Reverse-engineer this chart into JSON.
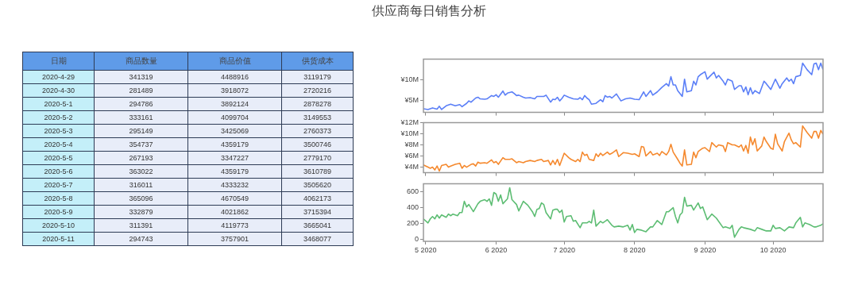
{
  "chart_data": [
    {
      "type": "other",
      "data_labels": true,
      "xlabel": "日期",
      "categories": [
        "2020-4-29",
        "2020-4-30",
        "2020-5-1",
        "2020-5-2",
        "2020-5-3",
        "2020-5-4",
        "2020-5-5",
        "2020-5-6",
        "2020-5-7",
        "2020-5-8",
        "2020-5-9",
        "2020-5-10",
        "2020-5-11"
      ],
      "series": [
        {
          "name": "商品数量",
          "values": [
            341319,
            281489,
            294786,
            333161,
            295149,
            354737,
            267193,
            363022,
            316011,
            365096,
            332879,
            311391,
            294743
          ]
        },
        {
          "name": "商品价值",
          "values": [
            4488916,
            3918072,
            3892124,
            4099704,
            3425069,
            4359179,
            3347227,
            4359179,
            4333232,
            4670549,
            4021862,
            4119773,
            3757901
          ]
        },
        {
          "name": "供货成本",
          "values": [
            3119179,
            2720216,
            2878278,
            3149553,
            2760373,
            3500746,
            2779170,
            3610789,
            3505620,
            4062173,
            3715394,
            3665041,
            3468077
          ]
        }
      ]
    },
    {
      "type": "line",
      "title": "供应商每日销售分析",
      "marker": "none",
      "tick_labels": "y",
      "xlim": [
        "2020-04-30",
        "2020-10-23"
      ],
      "xticks": [
        {
          "value": "2020-05-01",
          "label": null
        },
        {
          "value": "2020-06-01",
          "label": null
        },
        {
          "value": "2020-07-01",
          "label": null
        },
        {
          "value": "2020-08-01",
          "label": null
        },
        {
          "value": "2020-09-01",
          "label": null
        },
        {
          "value": "2020-10-01",
          "label": null
        }
      ],
      "ylim": [
        2,
        15
      ],
      "yticks": [
        {
          "value": 5,
          "label": "¥5M"
        },
        {
          "value": 10,
          "label": "¥10M"
        }
      ],
      "series": [
        {
          "color": "#5b7ff7",
          "x": [
            "2020-04-30",
            "2020-05-02",
            "2020-05-04",
            "2020-05-06",
            "2020-05-07",
            "2020-05-08",
            "2020-05-10",
            "2020-05-12",
            "2020-05-14",
            "2020-05-16",
            "2020-05-17",
            "2020-05-19",
            "2020-05-20",
            "2020-05-21",
            "2020-05-23",
            "2020-05-24",
            "2020-05-25",
            "2020-05-27",
            "2020-05-28",
            "2020-05-30",
            "2020-05-31",
            "2020-06-01",
            "2020-06-02",
            "2020-06-04",
            "2020-06-05",
            "2020-06-06",
            "2020-06-08",
            "2020-06-09",
            "2020-06-10",
            "2020-06-11",
            "2020-06-13",
            "2020-06-14",
            "2020-06-16",
            "2020-06-18",
            "2020-06-19",
            "2020-06-22",
            "2020-06-23",
            "2020-06-25",
            "2020-06-26",
            "2020-06-27",
            "2020-06-28",
            "2020-06-29",
            "2020-06-30",
            "2020-07-01",
            "2020-07-03",
            "2020-07-05",
            "2020-07-07",
            "2020-07-08",
            "2020-07-09",
            "2020-07-10",
            "2020-07-11",
            "2020-07-12",
            "2020-07-13",
            "2020-07-15",
            "2020-07-17",
            "2020-07-18",
            "2020-07-19",
            "2020-07-20",
            "2020-07-21",
            "2020-07-22",
            "2020-07-24",
            "2020-07-26",
            "2020-07-28",
            "2020-07-30",
            "2020-08-01",
            "2020-08-03",
            "2020-08-05",
            "2020-08-06",
            "2020-08-08",
            "2020-08-09",
            "2020-08-11",
            "2020-08-13",
            "2020-08-15",
            "2020-08-16",
            "2020-08-17",
            "2020-08-18",
            "2020-08-19",
            "2020-08-20",
            "2020-08-22",
            "2020-08-23",
            "2020-08-24",
            "2020-08-26",
            "2020-08-27",
            "2020-08-28",
            "2020-08-29",
            "2020-08-30",
            "2020-09-01",
            "2020-09-02",
            "2020-09-03",
            "2020-09-05",
            "2020-09-06",
            "2020-09-07",
            "2020-09-09",
            "2020-09-10",
            "2020-09-11",
            "2020-09-13",
            "2020-09-14",
            "2020-09-16",
            "2020-09-17",
            "2020-09-18",
            "2020-09-19",
            "2020-09-20",
            "2020-09-21",
            "2020-09-22",
            "2020-09-23",
            "2020-09-25",
            "2020-09-27",
            "2020-09-28",
            "2020-09-30",
            "2020-10-02",
            "2020-10-04",
            "2020-10-05",
            "2020-10-07",
            "2020-10-08",
            "2020-10-09",
            "2020-10-10",
            "2020-10-11",
            "2020-10-13",
            "2020-10-14",
            "2020-10-16",
            "2020-10-18",
            "2020-10-19",
            "2020-10-20",
            "2020-10-21",
            "2020-10-22",
            "2020-10-23"
          ],
          "values": [
            2.9,
            2.7,
            3.1,
            2.8,
            3.5,
            2.7,
            3.6,
            4.0,
            3.6,
            3.9,
            3.4,
            4.2,
            4.8,
            4.5,
            5.5,
            5.7,
            5.3,
            5.2,
            5.3,
            6.1,
            5.9,
            6.3,
            5.7,
            7.2,
            6.2,
            6.7,
            7.0,
            6.6,
            6.1,
            6.2,
            5.7,
            5.5,
            5.6,
            5.3,
            5.9,
            5.9,
            6.2,
            4.5,
            5.2,
            5.1,
            5.7,
            4.8,
            5.4,
            6.2,
            5.7,
            5.3,
            5.2,
            5.6,
            5.1,
            6.1,
            5.5,
            5.1,
            4.0,
            4.2,
            5.1,
            4.6,
            6.1,
            5.7,
            5.9,
            5.5,
            6.5,
            4.8,
            5.3,
            5.5,
            5.2,
            5.1,
            7.0,
            5.9,
            7.3,
            6.2,
            7.0,
            8.1,
            9.0,
            8.4,
            10.7,
            8.7,
            8.7,
            7.3,
            5.9,
            10.1,
            7.0,
            7.3,
            9.6,
            8.7,
            10.7,
            11.2,
            11.9,
            10.1,
            10.7,
            11.8,
            10.4,
            11.0,
            9.6,
            8.7,
            10.1,
            9.6,
            7.6,
            8.5,
            8.5,
            7.0,
            8.2,
            6.3,
            8.0,
            6.5,
            7.3,
            6.6,
            9.6,
            9.0,
            7.6,
            10.1,
            7.9,
            9.0,
            10.4,
            9.6,
            10.1,
            9.0,
            10.7,
            11.0,
            14.0,
            12.4,
            11.2,
            13.8,
            14.0,
            12.4,
            14.0,
            12.4
          ]
        }
      ]
    },
    {
      "type": "line",
      "marker": "none",
      "tick_labels": "y",
      "xlim": [
        "2020-04-30",
        "2020-10-23"
      ],
      "xticks": [
        {
          "value": "2020-05-01",
          "label": null
        },
        {
          "value": "2020-06-01",
          "label": null
        },
        {
          "value": "2020-07-01",
          "label": null
        },
        {
          "value": "2020-08-01",
          "label": null
        },
        {
          "value": "2020-09-01",
          "label": null
        },
        {
          "value": "2020-10-01",
          "label": null
        }
      ],
      "ylim": [
        3,
        12
      ],
      "yticks": [
        {
          "value": 4,
          "label": "¥4M"
        },
        {
          "value": 6,
          "label": "¥6M"
        },
        {
          "value": 8,
          "label": "¥8M"
        },
        {
          "value": 10,
          "label": "¥10M"
        },
        {
          "value": 12,
          "label": "¥12M"
        }
      ],
      "series": [
        {
          "color": "#f5892e",
          "x": [
            "2020-04-30",
            "2020-05-02",
            "2020-05-03",
            "2020-05-04",
            "2020-05-05",
            "2020-05-06",
            "2020-05-07",
            "2020-05-08",
            "2020-05-09",
            "2020-05-10",
            "2020-05-11",
            "2020-05-12",
            "2020-05-14",
            "2020-05-16",
            "2020-05-17",
            "2020-05-18",
            "2020-05-19",
            "2020-05-21",
            "2020-05-22",
            "2020-05-23",
            "2020-05-24",
            "2020-05-25",
            "2020-05-27",
            "2020-05-28",
            "2020-05-30",
            "2020-05-31",
            "2020-06-01",
            "2020-06-02",
            "2020-06-04",
            "2020-06-05",
            "2020-06-07",
            "2020-06-08",
            "2020-06-10",
            "2020-06-11",
            "2020-06-13",
            "2020-06-14",
            "2020-06-16",
            "2020-06-18",
            "2020-06-19",
            "2020-06-21",
            "2020-06-22",
            "2020-06-24",
            "2020-06-25",
            "2020-06-26",
            "2020-06-27",
            "2020-06-28",
            "2020-06-29",
            "2020-06-30",
            "2020-07-01",
            "2020-07-03",
            "2020-07-04",
            "2020-07-06",
            "2020-07-07",
            "2020-07-08",
            "2020-07-09",
            "2020-07-10",
            "2020-07-11",
            "2020-07-12",
            "2020-07-14",
            "2020-07-15",
            "2020-07-16",
            "2020-07-17",
            "2020-07-18",
            "2020-07-20",
            "2020-07-21",
            "2020-07-22",
            "2020-07-24",
            "2020-07-25",
            "2020-07-27",
            "2020-07-29",
            "2020-07-31",
            "2020-08-01",
            "2020-08-03",
            "2020-08-04",
            "2020-08-05",
            "2020-08-06",
            "2020-08-08",
            "2020-08-09",
            "2020-08-11",
            "2020-08-12",
            "2020-08-13",
            "2020-08-15",
            "2020-08-16",
            "2020-08-17",
            "2020-08-18",
            "2020-08-20",
            "2020-08-21",
            "2020-08-22",
            "2020-08-23",
            "2020-08-24",
            "2020-08-26",
            "2020-08-27",
            "2020-08-28",
            "2020-08-29",
            "2020-08-31",
            "2020-09-01",
            "2020-09-03",
            "2020-09-04",
            "2020-09-06",
            "2020-09-07",
            "2020-09-09",
            "2020-09-10",
            "2020-09-11",
            "2020-09-13",
            "2020-09-14",
            "2020-09-16",
            "2020-09-17",
            "2020-09-18",
            "2020-09-19",
            "2020-09-20",
            "2020-09-21",
            "2020-09-22",
            "2020-09-23",
            "2020-09-24",
            "2020-09-26",
            "2020-09-27",
            "2020-09-28",
            "2020-09-30",
            "2020-10-01",
            "2020-10-02",
            "2020-10-03",
            "2020-10-05",
            "2020-10-06",
            "2020-10-08",
            "2020-10-09",
            "2020-10-10",
            "2020-10-11",
            "2020-10-13",
            "2020-10-14",
            "2020-10-16",
            "2020-10-18",
            "2020-10-19",
            "2020-10-20",
            "2020-10-21",
            "2020-10-22",
            "2020-10-23"
          ],
          "values": [
            4.4,
            4.0,
            3.8,
            4.0,
            3.5,
            4.2,
            3.3,
            4.3,
            4.4,
            4.5,
            4.0,
            4.2,
            4.5,
            4.7,
            3.8,
            4.3,
            4.0,
            4.5,
            4.6,
            4.2,
            4.9,
            4.7,
            4.8,
            4.7,
            5.3,
            4.8,
            5.0,
            4.5,
            5.7,
            5.4,
            5.4,
            5.5,
            4.8,
            5.0,
            4.8,
            5.0,
            5.2,
            5.0,
            5.2,
            5.4,
            5.0,
            5.2,
            4.4,
            5.2,
            4.5,
            5.4,
            4.3,
            5.4,
            6.5,
            5.7,
            5.4,
            5.0,
            5.4,
            5.0,
            6.7,
            6.1,
            6.3,
            5.4,
            5.2,
            6.4,
            5.9,
            6.5,
            6.1,
            6.7,
            6.3,
            6.5,
            7.1,
            5.9,
            6.6,
            6.5,
            6.3,
            6.4,
            5.9,
            7.7,
            7.6,
            6.0,
            6.8,
            6.2,
            6.5,
            6.1,
            6.8,
            6.2,
            6.8,
            8.1,
            6.7,
            5.4,
            4.7,
            4.2,
            7.1,
            4.4,
            4.5,
            6.7,
            5.7,
            6.8,
            7.4,
            7.5,
            6.8,
            8.4,
            7.6,
            8.0,
            7.8,
            6.8,
            8.4,
            8.0,
            8.0,
            7.6,
            8.0,
            6.9,
            7.9,
            6.5,
            9.4,
            8.0,
            9.1,
            6.9,
            7.8,
            9.4,
            8.6,
            7.4,
            7.2,
            9.9,
            8.2,
            6.9,
            8.6,
            10.1,
            8.9,
            8.2,
            8.4,
            7.6,
            11.4,
            10.2,
            9.2,
            10.4,
            10.4,
            9.2,
            10.6,
            9.9
          ]
        }
      ]
    },
    {
      "type": "line",
      "marker": "none",
      "xlim": [
        "2020-04-30",
        "2020-10-23"
      ],
      "xticks": [
        {
          "value": "2020-05-01",
          "label": "5 2020"
        },
        {
          "value": "2020-06-01",
          "label": "6 2020"
        },
        {
          "value": "2020-07-01",
          "label": "7 2020"
        },
        {
          "value": "2020-08-01",
          "label": "8 2020"
        },
        {
          "value": "2020-09-01",
          "label": "9 2020"
        },
        {
          "value": "2020-10-01",
          "label": "10 2020"
        }
      ],
      "ylim": [
        -20,
        700
      ],
      "yticks": [
        0,
        200,
        400,
        600
      ],
      "series": [
        {
          "color": "#5dbd73",
          "x": [
            "2020-04-30",
            "2020-05-02",
            "2020-05-03",
            "2020-05-04",
            "2020-05-05",
            "2020-05-06",
            "2020-05-07",
            "2020-05-08",
            "2020-05-10",
            "2020-05-11",
            "2020-05-12",
            "2020-05-13",
            "2020-05-15",
            "2020-05-16",
            "2020-05-17",
            "2020-05-18",
            "2020-05-19",
            "2020-05-20",
            "2020-05-22",
            "2020-05-24",
            "2020-05-25",
            "2020-05-27",
            "2020-05-28",
            "2020-05-29",
            "2020-05-30",
            "2020-05-31",
            "2020-06-01",
            "2020-06-02",
            "2020-06-03",
            "2020-06-04",
            "2020-06-06",
            "2020-06-07",
            "2020-06-08",
            "2020-06-10",
            "2020-06-11",
            "2020-06-13",
            "2020-06-15",
            "2020-06-17",
            "2020-06-18",
            "2020-06-19",
            "2020-06-20",
            "2020-06-21",
            "2020-06-22",
            "2020-06-23",
            "2020-06-25",
            "2020-06-26",
            "2020-06-27",
            "2020-06-28",
            "2020-06-29",
            "2020-06-30",
            "2020-07-01",
            "2020-07-02",
            "2020-07-04",
            "2020-07-05",
            "2020-07-06",
            "2020-07-08",
            "2020-07-09",
            "2020-07-11",
            "2020-07-12",
            "2020-07-13",
            "2020-07-14",
            "2020-07-15",
            "2020-07-17",
            "2020-07-18",
            "2020-07-20",
            "2020-07-22",
            "2020-07-23",
            "2020-07-25",
            "2020-07-27",
            "2020-07-29",
            "2020-07-30",
            "2020-07-31",
            "2020-08-01",
            "2020-08-02",
            "2020-08-04",
            "2020-08-06",
            "2020-08-08",
            "2020-08-09",
            "2020-08-11",
            "2020-08-13",
            "2020-08-15",
            "2020-08-16",
            "2020-08-18",
            "2020-08-19",
            "2020-08-20",
            "2020-08-21",
            "2020-08-22",
            "2020-08-23",
            "2020-08-24",
            "2020-08-26",
            "2020-08-27",
            "2020-08-29",
            "2020-08-30",
            "2020-08-31",
            "2020-09-02",
            "2020-09-04",
            "2020-09-06",
            "2020-09-09",
            "2020-09-10",
            "2020-09-12",
            "2020-09-13",
            "2020-09-14",
            "2020-09-16",
            "2020-09-17",
            "2020-09-18",
            "2020-09-21",
            "2020-09-23",
            "2020-09-24",
            "2020-09-26",
            "2020-09-28",
            "2020-09-30",
            "2020-10-01",
            "2020-10-02",
            "2020-10-04",
            "2020-10-06",
            "2020-10-08",
            "2020-10-10",
            "2020-10-11",
            "2020-10-13",
            "2020-10-14",
            "2020-10-15",
            "2020-10-17",
            "2020-10-19",
            "2020-10-20",
            "2020-10-22",
            "2020-10-23"
          ],
          "values": [
            260,
            210,
            260,
            290,
            260,
            310,
            270,
            310,
            280,
            320,
            300,
            320,
            300,
            340,
            340,
            480,
            410,
            440,
            350,
            450,
            480,
            500,
            480,
            510,
            430,
            590,
            570,
            480,
            560,
            450,
            510,
            650,
            500,
            440,
            360,
            480,
            430,
            350,
            290,
            380,
            390,
            460,
            440,
            340,
            260,
            370,
            380,
            380,
            340,
            370,
            220,
            290,
            300,
            230,
            240,
            150,
            210,
            210,
            230,
            210,
            370,
            170,
            230,
            210,
            250,
            180,
            160,
            170,
            160,
            180,
            120,
            190,
            90,
            130,
            120,
            100,
            160,
            160,
            240,
            190,
            350,
            350,
            400,
            290,
            210,
            310,
            340,
            530,
            420,
            430,
            370,
            460,
            390,
            410,
            250,
            320,
            270,
            150,
            160,
            140,
            180,
            30,
            130,
            160,
            150,
            130,
            110,
            150,
            130,
            110,
            110,
            180,
            140,
            150,
            110,
            160,
            150,
            210,
            280,
            160,
            210,
            190,
            160,
            160,
            180,
            200
          ]
        }
      ]
    }
  ]
}
